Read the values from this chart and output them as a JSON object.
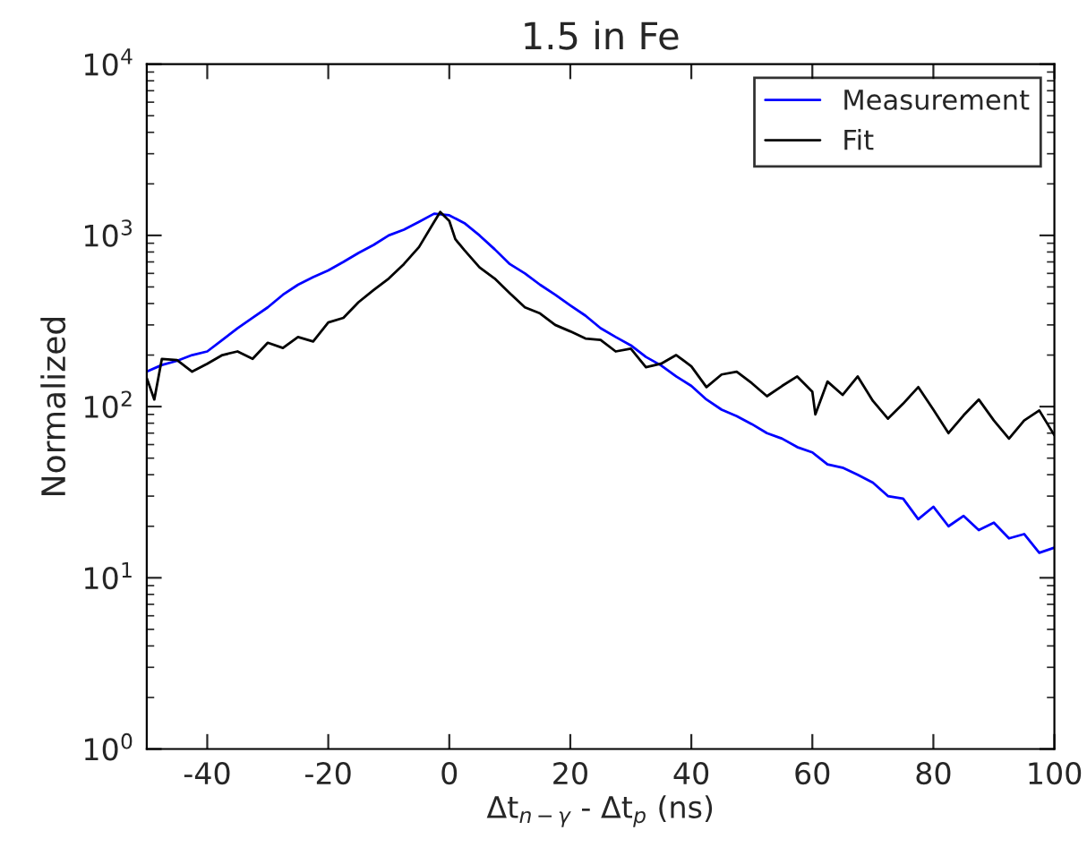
{
  "chart_data": {
    "type": "line",
    "title": "1.5 in Fe",
    "xlabel": "Δt$_{n−γ}$ - Δt$_{p}$ (ns)",
    "ylabel": "Normalized",
    "log": "y",
    "xlim": [
      -50,
      100
    ],
    "xticks": [
      -40,
      -20,
      0,
      20,
      40,
      60,
      80,
      100
    ],
    "ylim": [
      1,
      10000
    ],
    "yticks": [
      {
        "value": 1,
        "label": "10$^{0}$"
      },
      {
        "value": 10,
        "label": "10$^{1}$"
      },
      {
        "value": 100,
        "label": "10$^{2}$"
      },
      {
        "value": 1000,
        "label": "10$^{3}$"
      },
      {
        "value": 10000,
        "label": "10$^{4}$"
      }
    ],
    "grid": false,
    "legend": "top right",
    "line_style": "solid",
    "series": [
      {
        "name": "Measurement",
        "color": "#0000ff",
        "x": [
          -50,
          -47.5,
          -45,
          -42.5,
          -40,
          -37.5,
          -35,
          -32.5,
          -30,
          -27.5,
          -25,
          -22.5,
          -20,
          -17.5,
          -15,
          -12.5,
          -10,
          -7.5,
          -5,
          -2.5,
          0,
          2.5,
          5,
          7.5,
          10,
          12.5,
          15,
          17.5,
          20,
          22.5,
          25,
          27.5,
          30,
          32.5,
          35,
          37.5,
          40,
          42.5,
          45,
          47.5,
          50,
          52.5,
          55,
          57.5,
          60,
          62.5,
          65,
          67.5,
          70,
          72.5,
          75,
          77.5,
          80,
          82.5,
          85,
          87.5,
          90,
          92.5,
          95,
          97.5,
          100
        ],
        "values": [
          160,
          175,
          185,
          200,
          210,
          245,
          287,
          330,
          380,
          450,
          515,
          570,
          625,
          700,
          790,
          880,
          1000,
          1080,
          1200,
          1340,
          1310,
          1180,
          1000,
          830,
          680,
          600,
          515,
          450,
          390,
          340,
          287,
          255,
          228,
          195,
          174,
          150,
          132,
          110,
          96,
          88,
          79,
          70,
          65,
          58,
          54,
          46,
          44,
          40,
          36,
          30,
          29,
          22,
          26,
          20,
          23,
          19,
          21,
          17,
          18,
          14,
          15
        ]
      },
      {
        "name": "Fit",
        "color": "#000000",
        "x": [
          -50,
          -48.75,
          -47.5,
          -45,
          -42.5,
          -40,
          -37.5,
          -35,
          -32.5,
          -30,
          -27.5,
          -25,
          -22.5,
          -20,
          -17.5,
          -15,
          -12.5,
          -10,
          -7.5,
          -5,
          -2.5,
          -1.5,
          0,
          1,
          2.5,
          5,
          7.5,
          10,
          12.5,
          15,
          17.5,
          20,
          22.5,
          25,
          27.5,
          30,
          32.5,
          35,
          37.5,
          40,
          42.5,
          45,
          47.5,
          50,
          52.5,
          55,
          57.5,
          60,
          60.5,
          62.5,
          65,
          67.5,
          70,
          72.5,
          75,
          77.5,
          80,
          82.5,
          85,
          87.5,
          90,
          92.5,
          95,
          97.5,
          100
        ],
        "values": [
          147,
          110,
          190,
          187,
          160,
          178,
          200,
          210,
          190,
          236,
          220,
          255,
          240,
          310,
          330,
          407,
          480,
          560,
          680,
          855,
          1200,
          1370,
          1215,
          950,
          820,
          650,
          560,
          460,
          380,
          350,
          300,
          275,
          250,
          245,
          210,
          218,
          170,
          178,
          200,
          172,
          130,
          154,
          160,
          137,
          115,
          132,
          150,
          122,
          90,
          140,
          117,
          150,
          108,
          85,
          104,
          130,
          96,
          70,
          89,
          110,
          83,
          65,
          83,
          95,
          68
        ]
      }
    ]
  }
}
